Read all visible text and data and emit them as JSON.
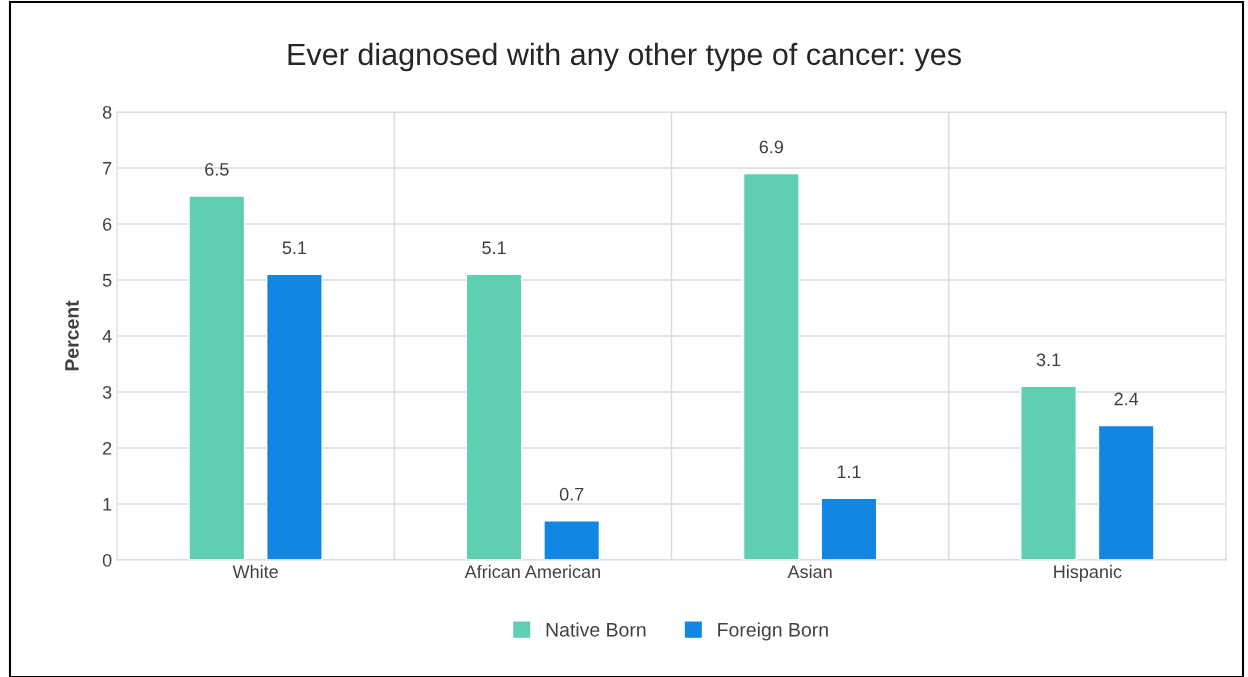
{
  "chart_data": {
    "type": "bar",
    "title": "Ever diagnosed with any other type of cancer: yes",
    "ylabel": "Percent",
    "categories": [
      "White",
      "African American",
      "Asian",
      "Hispanic"
    ],
    "series": [
      {
        "name": "Native Born",
        "color": "#5ecfb1",
        "values": [
          6.5,
          5.1,
          6.9,
          3.1
        ]
      },
      {
        "name": "Foreign Born",
        "color": "#1186e3",
        "values": [
          5.1,
          0.7,
          1.1,
          2.4
        ]
      }
    ],
    "ylim": [
      0,
      8
    ],
    "yticks": [
      0,
      1,
      2,
      3,
      4,
      5,
      6,
      7,
      8
    ],
    "grid": true,
    "legend": "bottom",
    "data_labels": true
  }
}
